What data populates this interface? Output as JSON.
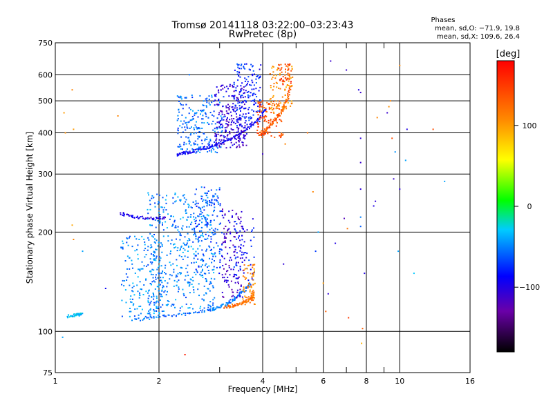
{
  "chart_data": {
    "type": "scatter",
    "title": "Tromsø 20141118 03:22:00–03:23:43",
    "subtitle": "RwPretec (8p)",
    "xlabel": "Frequency [MHz]",
    "ylabel": "Stationary phase Virtual Height [km]",
    "x_scale": "log",
    "y_scale": "log",
    "xlim": [
      1,
      16
    ],
    "ylim": [
      75,
      750
    ],
    "x_ticks": [
      1,
      2,
      4,
      6,
      8,
      10,
      16
    ],
    "x_tick_labels": [
      "1",
      "2",
      "4",
      "6",
      "8",
      "10",
      "16"
    ],
    "x_minor_ticks": [
      3,
      5,
      7,
      9
    ],
    "y_ticks": [
      75,
      100,
      200,
      300,
      400,
      500,
      600,
      750
    ],
    "y_tick_labels": [
      "75",
      "100",
      "200",
      "300",
      "400",
      "500",
      "600",
      "750"
    ],
    "grid": true,
    "stats": {
      "heading": "Phases",
      "line_o": "mean, sd,O: −71.9, 19.8",
      "line_x": "mean, sd,X: 109.6, 26.4"
    },
    "colorbar": {
      "label": "[deg]",
      "range": [
        -180,
        180
      ],
      "ticks": [
        100,
        0,
        -100
      ],
      "tick_labels": [
        "100",
        "0",
        "−100"
      ],
      "colormap": "rainbow"
    },
    "traces": [
      {
        "x": [
          1.68,
          2.0,
          2.4,
          2.8,
          3.1,
          3.3,
          3.5,
          3.7
        ],
        "y": [
          108,
          111,
          113,
          116,
          120,
          125,
          132,
          140
        ],
        "phase": -55
      },
      {
        "x": [
          3.1,
          3.3,
          3.5,
          3.7,
          3.75
        ],
        "y": [
          118,
          120,
          122,
          125,
          130
        ],
        "phase": 125
      },
      {
        "x": [
          2.25,
          2.4,
          2.6,
          2.8,
          3.0,
          3.3,
          3.6,
          3.9,
          4.1
        ],
        "y": [
          342,
          348,
          355,
          362,
          372,
          388,
          410,
          440,
          475
        ],
        "phase": -90
      },
      {
        "x": [
          3.9,
          4.1,
          4.3,
          4.5,
          4.7,
          4.85
        ],
        "y": [
          395,
          410,
          430,
          460,
          500,
          560
        ],
        "phase": 130
      },
      {
        "x": [
          1.55,
          1.7,
          1.9,
          2.1
        ],
        "y": [
          228,
          222,
          220,
          221
        ],
        "phase": -100
      },
      {
        "x": [
          1.08,
          1.15,
          1.2
        ],
        "y": [
          111,
          112,
          113
        ],
        "phase": -35
      }
    ],
    "clusters": [
      {
        "x_range": [
          1.85,
          2.9
        ],
        "y_range": [
          115,
          265
        ],
        "n": 480,
        "phase": -50
      },
      {
        "x_range": [
          1.55,
          2.05
        ],
        "y_range": [
          110,
          195
        ],
        "n": 160,
        "phase": -48
      },
      {
        "x_range": [
          2.55,
          3.05
        ],
        "y_range": [
          150,
          275
        ],
        "n": 140,
        "phase": -65
      },
      {
        "x_range": [
          3.05,
          3.55
        ],
        "y_range": [
          125,
          235
        ],
        "n": 130,
        "phase": -112
      },
      {
        "x_range": [
          3.3,
          3.8
        ],
        "y_range": [
          140,
          220
        ],
        "n": 60,
        "phase": -82
      },
      {
        "x_range": [
          3.5,
          3.8
        ],
        "y_range": [
          120,
          160
        ],
        "n": 70,
        "phase": 110
      },
      {
        "x_range": [
          2.25,
          3.1
        ],
        "y_range": [
          345,
          520
        ],
        "n": 220,
        "phase": -55
      },
      {
        "x_range": [
          2.9,
          3.6
        ],
        "y_range": [
          360,
          560
        ],
        "n": 220,
        "phase": -108
      },
      {
        "x_range": [
          3.3,
          3.95
        ],
        "y_range": [
          420,
          650
        ],
        "n": 160,
        "phase": -78
      },
      {
        "x_range": [
          3.85,
          4.6
        ],
        "y_range": [
          385,
          500
        ],
        "n": 100,
        "phase": 140
      },
      {
        "x_range": [
          4.2,
          4.9
        ],
        "y_range": [
          460,
          640
        ],
        "n": 90,
        "phase": 105
      },
      {
        "x_range": [
          4.45,
          4.85
        ],
        "y_range": [
          560,
          650
        ],
        "n": 40,
        "phase": 150
      }
    ],
    "sparse": [
      {
        "x": 1.0,
        "y": 92,
        "phase": -65
      },
      {
        "x": 1.05,
        "y": 96,
        "phase": -40
      },
      {
        "x": 1.06,
        "y": 460,
        "phase": 100
      },
      {
        "x": 1.07,
        "y": 400,
        "phase": 105
      },
      {
        "x": 1.12,
        "y": 540,
        "phase": 110
      },
      {
        "x": 1.13,
        "y": 410,
        "phase": 100
      },
      {
        "x": 1.12,
        "y": 210,
        "phase": 95
      },
      {
        "x": 1.13,
        "y": 190,
        "phase": 110
      },
      {
        "x": 1.2,
        "y": 175,
        "phase": -40
      },
      {
        "x": 1.4,
        "y": 135,
        "phase": -90
      },
      {
        "x": 1.52,
        "y": 450,
        "phase": 110
      },
      {
        "x": 2.38,
        "y": 85,
        "phase": 165
      },
      {
        "x": 2.45,
        "y": 600,
        "phase": -55
      },
      {
        "x": 4.0,
        "y": 345,
        "phase": -110
      },
      {
        "x": 4.6,
        "y": 160,
        "phase": -105
      },
      {
        "x": 4.65,
        "y": 370,
        "phase": 110
      },
      {
        "x": 5.4,
        "y": 400,
        "phase": 120
      },
      {
        "x": 5.6,
        "y": 265,
        "phase": 110
      },
      {
        "x": 5.7,
        "y": 175,
        "phase": -70
      },
      {
        "x": 5.8,
        "y": 200,
        "phase": -40
      },
      {
        "x": 6.0,
        "y": 140,
        "phase": 100
      },
      {
        "x": 6.1,
        "y": 115,
        "phase": 130
      },
      {
        "x": 6.2,
        "y": 130,
        "phase": -105
      },
      {
        "x": 6.3,
        "y": 660,
        "phase": -110
      },
      {
        "x": 6.5,
        "y": 185,
        "phase": -100
      },
      {
        "x": 6.9,
        "y": 220,
        "phase": -120
      },
      {
        "x": 7.0,
        "y": 620,
        "phase": -110
      },
      {
        "x": 7.05,
        "y": 205,
        "phase": 120
      },
      {
        "x": 7.1,
        "y": 110,
        "phase": 150
      },
      {
        "x": 7.6,
        "y": 540,
        "phase": -100
      },
      {
        "x": 7.7,
        "y": 530,
        "phase": -110
      },
      {
        "x": 7.7,
        "y": 385,
        "phase": -105
      },
      {
        "x": 7.7,
        "y": 325,
        "phase": -110
      },
      {
        "x": 7.7,
        "y": 270,
        "phase": -105
      },
      {
        "x": 7.7,
        "y": 222,
        "phase": -50
      },
      {
        "x": 7.7,
        "y": 208,
        "phase": -60
      },
      {
        "x": 7.8,
        "y": 102,
        "phase": 130
      },
      {
        "x": 7.75,
        "y": 92,
        "phase": 90
      },
      {
        "x": 7.9,
        "y": 150,
        "phase": -100
      },
      {
        "x": 8.5,
        "y": 248,
        "phase": -105
      },
      {
        "x": 8.4,
        "y": 240,
        "phase": -100
      },
      {
        "x": 8.6,
        "y": 445,
        "phase": 110
      },
      {
        "x": 9.2,
        "y": 460,
        "phase": -110
      },
      {
        "x": 9.3,
        "y": 480,
        "phase": 105
      },
      {
        "x": 9.4,
        "y": 500,
        "phase": 110
      },
      {
        "x": 9.5,
        "y": 385,
        "phase": 140
      },
      {
        "x": 9.6,
        "y": 290,
        "phase": -110
      },
      {
        "x": 9.7,
        "y": 350,
        "phase": -45
      },
      {
        "x": 9.9,
        "y": 175,
        "phase": -40
      },
      {
        "x": 10.0,
        "y": 270,
        "phase": -105
      },
      {
        "x": 10.0,
        "y": 640,
        "phase": 110
      },
      {
        "x": 10.4,
        "y": 330,
        "phase": -40
      },
      {
        "x": 10.5,
        "y": 410,
        "phase": -100
      },
      {
        "x": 11.0,
        "y": 150,
        "phase": -30
      },
      {
        "x": 12.5,
        "y": 410,
        "phase": 140
      },
      {
        "x": 13.5,
        "y": 285,
        "phase": -40
      }
    ]
  }
}
